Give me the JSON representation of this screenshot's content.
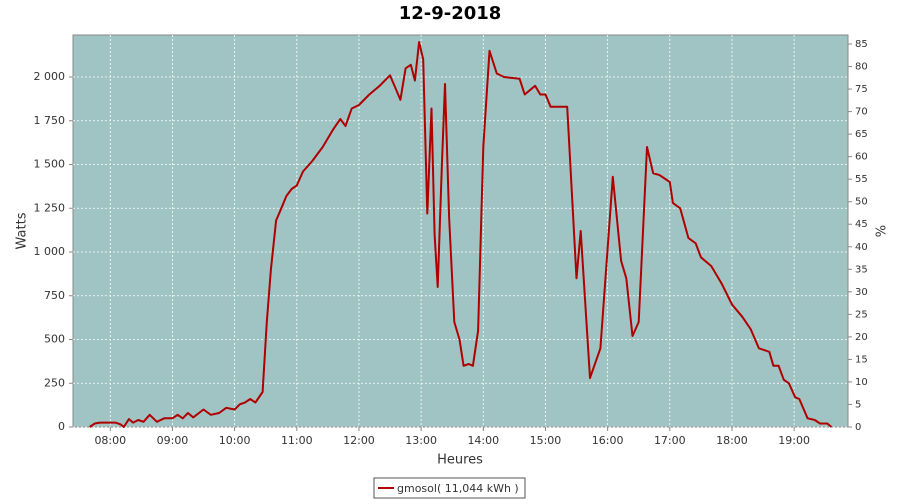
{
  "chart_data": {
    "type": "line",
    "title": "12-9-2018",
    "x_label": "Heures",
    "y_label": "Watts",
    "y2_label": "%",
    "xlim": [
      "07:24",
      "19:52"
    ],
    "xticks": [
      "08:00",
      "09:00",
      "10:00",
      "11:00",
      "12:00",
      "13:00",
      "14:00",
      "15:00",
      "16:00",
      "17:00",
      "18:00",
      "19:00"
    ],
    "ylim": [
      0,
      2240
    ],
    "yticks": [
      0,
      250,
      500,
      750,
      {
        "value": 1000,
        "label": "1 000"
      },
      {
        "value": 1250,
        "label": "1 250"
      },
      {
        "value": 1500,
        "label": "1 500"
      },
      {
        "value": 1750,
        "label": "1 750"
      },
      {
        "value": 2000,
        "label": "2 000"
      }
    ],
    "y2lim": [
      0,
      87
    ],
    "y2ticks": [
      0,
      5,
      10,
      15,
      20,
      25,
      30,
      35,
      40,
      45,
      50,
      55,
      60,
      65,
      70,
      75,
      80,
      85
    ],
    "grid": true,
    "legend": "bottom",
    "x": [
      "07:40",
      "07:45",
      "07:50",
      "08:00",
      "08:05",
      "08:10",
      "08:13",
      "08:18",
      "08:22",
      "08:27",
      "08:32",
      "08:38",
      "08:45",
      "08:52",
      "09:00",
      "09:05",
      "09:10",
      "09:15",
      "09:20",
      "09:30",
      "09:37",
      "09:45",
      "09:52",
      "10:00",
      "10:05",
      "10:10",
      "10:15",
      "10:20",
      "10:27",
      "10:31",
      "10:35",
      "10:40",
      "10:45",
      "10:50",
      "10:55",
      "11:00",
      "11:06",
      "11:15",
      "11:25",
      "11:35",
      "11:42",
      "11:47",
      "11:53",
      "12:00",
      "12:10",
      "12:20",
      "12:30",
      "12:35",
      "12:40",
      "12:45",
      "12:50",
      "12:54",
      "12:58",
      "13:02",
      "13:06",
      "13:10",
      "13:13",
      "13:16",
      "13:20",
      "13:23",
      "13:27",
      "13:32",
      "13:37",
      "13:41",
      "13:46",
      "13:50",
      "13:55",
      "14:00",
      "14:06",
      "14:13",
      "14:20",
      "14:35",
      "14:40",
      "14:50",
      "14:55",
      "15:00",
      "15:05",
      "15:15",
      "15:21",
      "15:30",
      "15:34",
      "15:43",
      "15:53",
      "16:05",
      "16:13",
      "16:18",
      "16:24",
      "16:30",
      "16:38",
      "16:44",
      "16:50",
      "17:00",
      "17:03",
      "17:10",
      "17:18",
      "17:25",
      "17:30",
      "17:40",
      "17:50",
      "18:00",
      "18:10",
      "18:18",
      "18:26",
      "18:36",
      "18:40",
      "18:45",
      "18:50",
      "18:55",
      "19:01",
      "19:05",
      "19:13",
      "19:20",
      "19:25",
      "19:32",
      "19:36"
    ],
    "series": [
      {
        "name": "gmosol( 11,044 kWh )",
        "color": "#b00000",
        "values": [
          0,
          20,
          25,
          25,
          25,
          15,
          0,
          45,
          25,
          40,
          30,
          70,
          30,
          50,
          50,
          70,
          50,
          80,
          55,
          100,
          70,
          80,
          110,
          100,
          130,
          140,
          160,
          140,
          200,
          600,
          900,
          1180,
          1250,
          1320,
          1360,
          1380,
          1460,
          1520,
          1600,
          1700,
          1760,
          1720,
          1820,
          1840,
          1900,
          1950,
          2010,
          1940,
          1870,
          2050,
          2070,
          1980,
          2200,
          2100,
          1220,
          1820,
          1100,
          800,
          1500,
          1960,
          1200,
          600,
          500,
          350,
          360,
          350,
          550,
          1600,
          2150,
          2020,
          2000,
          1990,
          1900,
          1950,
          1900,
          1900,
          1830,
          1830,
          1830,
          850,
          1120,
          280,
          450,
          1430,
          950,
          850,
          520,
          600,
          1600,
          1450,
          1440,
          1400,
          1280,
          1250,
          1080,
          1050,
          970,
          920,
          820,
          700,
          630,
          560,
          450,
          430,
          350,
          350,
          270,
          250,
          170,
          160,
          50,
          40,
          20,
          20,
          0
        ]
      }
    ]
  }
}
